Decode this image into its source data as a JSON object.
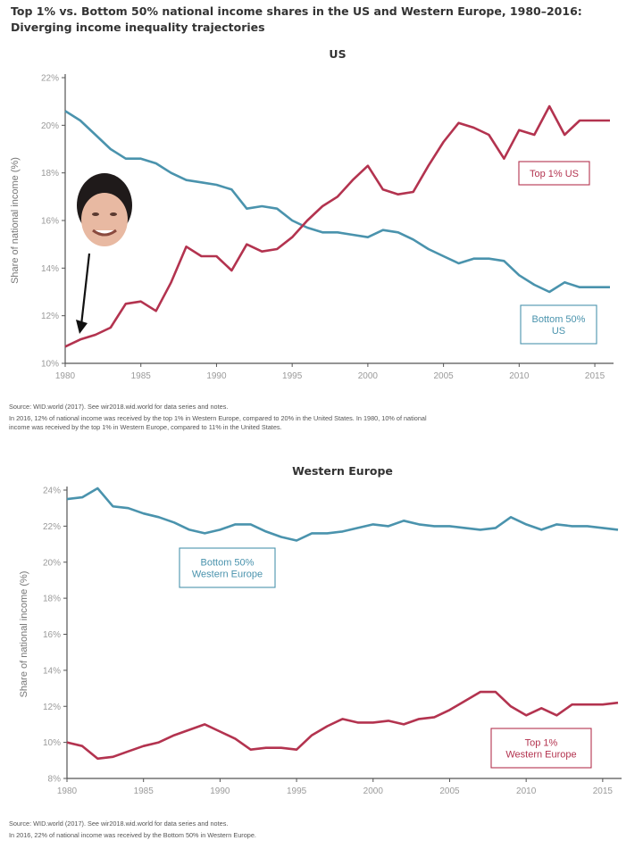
{
  "title_line1": "Top 1% vs. Bottom 50% national income shares in the US and Western Europe, 1980–2016:",
  "title_line2": "Diverging income inequality trajectories",
  "colors": {
    "top1": "#b3334f",
    "bottom50": "#4a93ad",
    "axis": "#555555"
  },
  "us_notes": {
    "source": "Source: WID.world (2017). See wir2018.wid.world for data series and notes.",
    "line1": "In 2016, 12% of national income was received by the top 1% in Western Europe, compared to 20% in the United States. In 1980, 10% of national",
    "line2": "income was received by the top 1% in Western Europe, compared to 11% in the United States."
  },
  "eu_notes": {
    "source": "Source: WID.world (2017). See wir2018.wid.world for data series and notes.",
    "line1": "In 2016, 22% of national income was received by the Bottom 50% in Western Europe."
  },
  "illustration": {
    "face_icon": "reagan-portrait-icon",
    "arrow_icon": "down-arrow-icon"
  },
  "chart_data": [
    {
      "type": "line",
      "title": "US",
      "xlabel": "",
      "ylabel": "Share of national income (%)",
      "xlim": [
        1980,
        2016
      ],
      "ylim": [
        10,
        22
      ],
      "x_ticks": [
        1980,
        1985,
        1990,
        1995,
        2000,
        2005,
        2010,
        2015
      ],
      "y_ticks": [
        10,
        12,
        14,
        16,
        18,
        20,
        22
      ],
      "x": [
        1980,
        1981,
        1982,
        1983,
        1984,
        1985,
        1986,
        1987,
        1988,
        1989,
        1990,
        1991,
        1992,
        1993,
        1994,
        1995,
        1996,
        1997,
        1998,
        1999,
        2000,
        2001,
        2002,
        2003,
        2004,
        2005,
        2006,
        2007,
        2008,
        2009,
        2010,
        2011,
        2012,
        2013,
        2014,
        2015,
        2016
      ],
      "series": [
        {
          "name": "Bottom 50% US",
          "label_lines": [
            "Bottom 50%",
            "US"
          ],
          "values": [
            20.6,
            20.2,
            19.6,
            19.0,
            18.6,
            18.6,
            18.4,
            18.0,
            17.7,
            17.6,
            17.5,
            17.3,
            16.5,
            16.6,
            16.5,
            16.0,
            15.7,
            15.5,
            15.5,
            15.4,
            15.3,
            15.6,
            15.5,
            15.2,
            14.8,
            14.5,
            14.2,
            14.4,
            14.4,
            14.3,
            13.7,
            13.3,
            13.0,
            13.4,
            13.2,
            13.2,
            13.2
          ]
        },
        {
          "name": "Top 1% US",
          "label_lines": [
            "Top 1% US"
          ],
          "values": [
            10.7,
            11.0,
            11.2,
            11.5,
            12.5,
            12.6,
            12.2,
            13.4,
            14.9,
            14.5,
            14.5,
            13.9,
            15.0,
            14.7,
            14.8,
            15.3,
            16.0,
            16.6,
            17.0,
            17.7,
            18.3,
            17.3,
            17.1,
            17.2,
            18.3,
            19.3,
            20.1,
            19.9,
            19.6,
            18.6,
            19.8,
            19.6,
            20.8,
            19.6,
            20.2,
            20.2,
            20.2
          ]
        }
      ]
    },
    {
      "type": "line",
      "title": "Western Europe",
      "xlabel": "",
      "ylabel": "Share of national income (%)",
      "xlim": [
        1980,
        2016
      ],
      "ylim": [
        8,
        24
      ],
      "x_ticks": [
        1980,
        1985,
        1990,
        1995,
        2000,
        2005,
        2010,
        2015
      ],
      "y_ticks": [
        8,
        10,
        12,
        14,
        16,
        18,
        20,
        22,
        24
      ],
      "x": [
        1980,
        1981,
        1982,
        1983,
        1984,
        1985,
        1986,
        1987,
        1988,
        1989,
        1990,
        1991,
        1992,
        1993,
        1994,
        1995,
        1996,
        1997,
        1998,
        1999,
        2000,
        2001,
        2002,
        2003,
        2004,
        2005,
        2006,
        2007,
        2008,
        2009,
        2010,
        2011,
        2012,
        2013,
        2014,
        2015,
        2016
      ],
      "series": [
        {
          "name": "Bottom 50% Western Europe",
          "label_lines": [
            "Bottom 50%",
            "Western Europe"
          ],
          "values": [
            23.5,
            23.6,
            24.1,
            23.1,
            23.0,
            22.7,
            22.5,
            22.2,
            21.8,
            21.6,
            21.8,
            22.1,
            22.1,
            21.7,
            21.4,
            21.2,
            21.6,
            21.6,
            21.7,
            21.9,
            22.1,
            22.0,
            22.3,
            22.1,
            22.0,
            22.0,
            21.9,
            21.8,
            21.9,
            22.5,
            22.1,
            21.8,
            22.1,
            22.0,
            22.0,
            21.9,
            21.8
          ]
        },
        {
          "name": "Top 1% Western Europe",
          "label_lines": [
            "Top 1%",
            "Western Europe"
          ],
          "values": [
            10.0,
            9.8,
            9.1,
            9.2,
            9.5,
            9.8,
            10.0,
            10.4,
            10.7,
            11.0,
            10.6,
            10.2,
            9.6,
            9.7,
            9.7,
            9.6,
            10.4,
            10.9,
            11.3,
            11.1,
            11.1,
            11.2,
            11.0,
            11.3,
            11.4,
            11.8,
            12.3,
            12.8,
            12.8,
            12.0,
            11.5,
            11.9,
            11.5,
            12.1,
            12.1,
            12.1,
            12.2
          ]
        }
      ]
    }
  ]
}
